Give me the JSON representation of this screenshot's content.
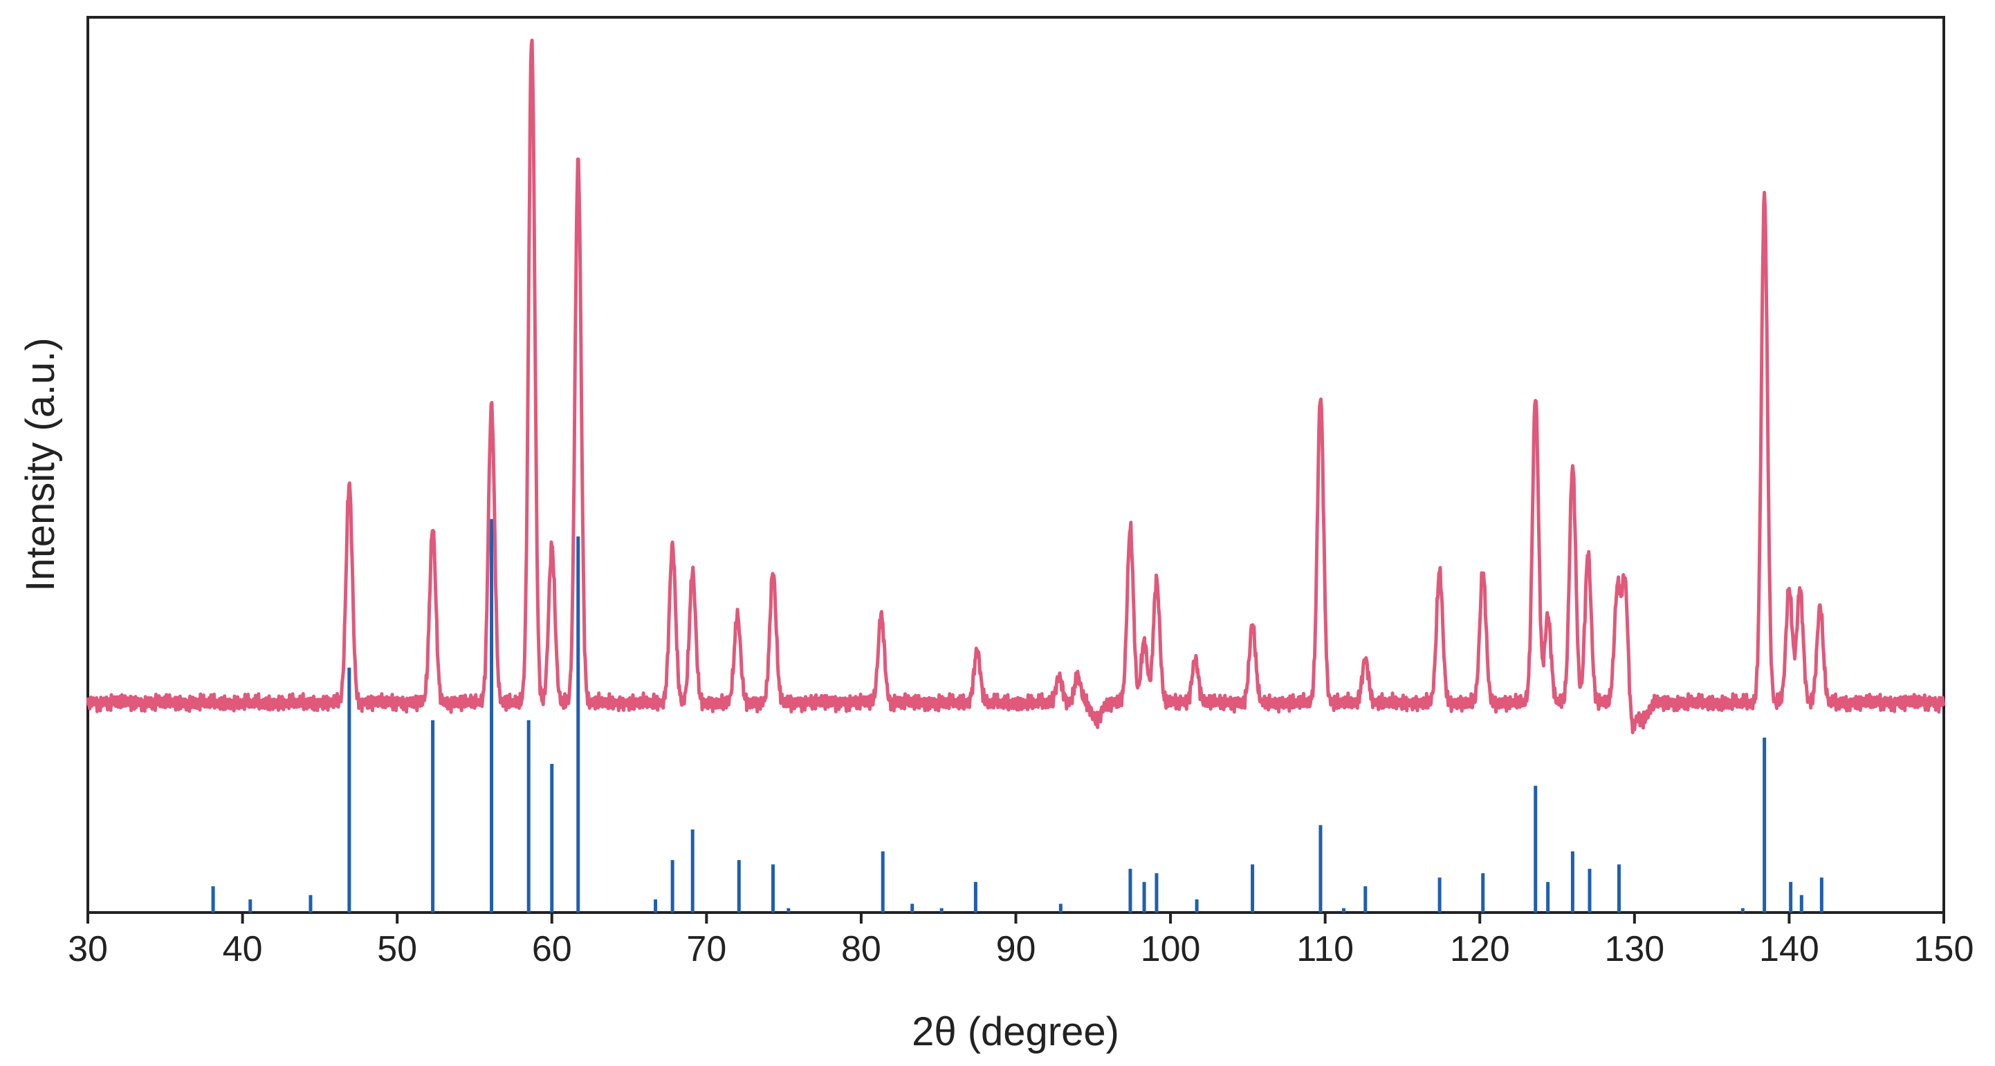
{
  "chart_data": {
    "type": "line",
    "xlabel": "2θ (degree)",
    "ylabel": "Intensity (a.u.)",
    "xlim": [
      30,
      150
    ],
    "x_ticks": [
      30,
      40,
      50,
      60,
      70,
      80,
      90,
      100,
      110,
      120,
      130,
      140,
      150
    ],
    "y_ticks": [],
    "grid": false,
    "legend": "none",
    "ylim": [
      0,
      100
    ],
    "colors": {
      "pattern": "#E0587A",
      "reference": "#1F5FB0",
      "axis": "#222222"
    },
    "pattern": {
      "baseline": 24,
      "peaks": [
        {
          "two_theta": 46.9,
          "intensity": 49
        },
        {
          "two_theta": 52.3,
          "intensity": 44
        },
        {
          "two_theta": 56.1,
          "intensity": 58
        },
        {
          "two_theta": 58.7,
          "intensity": 100
        },
        {
          "two_theta": 60.0,
          "intensity": 42
        },
        {
          "two_theta": 61.7,
          "intensity": 86
        },
        {
          "two_theta": 67.8,
          "intensity": 42
        },
        {
          "two_theta": 69.1,
          "intensity": 39
        },
        {
          "two_theta": 72.0,
          "intensity": 34
        },
        {
          "two_theta": 74.3,
          "intensity": 39
        },
        {
          "two_theta": 81.3,
          "intensity": 34
        },
        {
          "two_theta": 87.5,
          "intensity": 30
        },
        {
          "two_theta": 92.8,
          "intensity": 27
        },
        {
          "two_theta": 94.0,
          "intensity": 27
        },
        {
          "two_theta": 97.4,
          "intensity": 44
        },
        {
          "two_theta": 98.3,
          "intensity": 31
        },
        {
          "two_theta": 99.1,
          "intensity": 38
        },
        {
          "two_theta": 101.6,
          "intensity": 29
        },
        {
          "two_theta": 105.3,
          "intensity": 33
        },
        {
          "two_theta": 109.7,
          "intensity": 59
        },
        {
          "two_theta": 112.6,
          "intensity": 29
        },
        {
          "two_theta": 117.4,
          "intensity": 39
        },
        {
          "two_theta": 120.2,
          "intensity": 39
        },
        {
          "two_theta": 123.6,
          "intensity": 59
        },
        {
          "two_theta": 124.4,
          "intensity": 34
        },
        {
          "two_theta": 126.0,
          "intensity": 51
        },
        {
          "two_theta": 127.0,
          "intensity": 41
        },
        {
          "two_theta": 128.9,
          "intensity": 37
        },
        {
          "two_theta": 129.4,
          "intensity": 40
        },
        {
          "two_theta": 138.4,
          "intensity": 82
        },
        {
          "two_theta": 140.0,
          "intensity": 37
        },
        {
          "two_theta": 140.7,
          "intensity": 37
        },
        {
          "two_theta": 142.0,
          "intensity": 35
        }
      ],
      "dips": [
        {
          "two_theta": 95.2,
          "intensity": 22
        },
        {
          "two_theta": 129.7,
          "intensity": 20
        },
        {
          "two_theta": 130.6,
          "intensity": 22
        }
      ]
    },
    "reference_lines": [
      {
        "two_theta": 38.1,
        "intensity": 3
      },
      {
        "two_theta": 40.5,
        "intensity": 1.5
      },
      {
        "two_theta": 44.4,
        "intensity": 2
      },
      {
        "two_theta": 46.9,
        "intensity": 28
      },
      {
        "two_theta": 52.3,
        "intensity": 22
      },
      {
        "two_theta": 56.1,
        "intensity": 45
      },
      {
        "two_theta": 58.5,
        "intensity": 22
      },
      {
        "two_theta": 60.0,
        "intensity": 17
      },
      {
        "two_theta": 61.7,
        "intensity": 43
      },
      {
        "two_theta": 66.7,
        "intensity": 1.5
      },
      {
        "two_theta": 67.8,
        "intensity": 6
      },
      {
        "two_theta": 69.1,
        "intensity": 9.5
      },
      {
        "two_theta": 72.1,
        "intensity": 6
      },
      {
        "two_theta": 74.3,
        "intensity": 5.5
      },
      {
        "two_theta": 75.3,
        "intensity": 0.5
      },
      {
        "two_theta": 81.4,
        "intensity": 7
      },
      {
        "two_theta": 83.3,
        "intensity": 1
      },
      {
        "two_theta": 85.2,
        "intensity": 0.5
      },
      {
        "two_theta": 87.4,
        "intensity": 3.5
      },
      {
        "two_theta": 92.9,
        "intensity": 1
      },
      {
        "two_theta": 97.4,
        "intensity": 5
      },
      {
        "two_theta": 98.3,
        "intensity": 3.5
      },
      {
        "two_theta": 99.1,
        "intensity": 4.5
      },
      {
        "two_theta": 101.7,
        "intensity": 1.5
      },
      {
        "two_theta": 105.3,
        "intensity": 5.5
      },
      {
        "two_theta": 109.7,
        "intensity": 10
      },
      {
        "two_theta": 111.2,
        "intensity": 0.5
      },
      {
        "two_theta": 112.6,
        "intensity": 3
      },
      {
        "two_theta": 117.4,
        "intensity": 4
      },
      {
        "two_theta": 120.2,
        "intensity": 4.5
      },
      {
        "two_theta": 123.6,
        "intensity": 14.5
      },
      {
        "two_theta": 124.4,
        "intensity": 3.5
      },
      {
        "two_theta": 126.0,
        "intensity": 7
      },
      {
        "two_theta": 127.1,
        "intensity": 5
      },
      {
        "two_theta": 129.0,
        "intensity": 5.5
      },
      {
        "two_theta": 137.0,
        "intensity": 0.5
      },
      {
        "two_theta": 138.4,
        "intensity": 20
      },
      {
        "two_theta": 140.1,
        "intensity": 3.5
      },
      {
        "two_theta": 140.8,
        "intensity": 2
      },
      {
        "two_theta": 142.1,
        "intensity": 4
      }
    ]
  }
}
